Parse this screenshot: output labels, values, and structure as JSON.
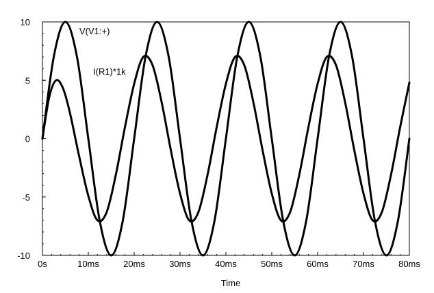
{
  "chart_data": {
    "type": "line",
    "title": "",
    "xlabel": "Time",
    "ylabel": "",
    "x_unit": "ms",
    "xlim": [
      0,
      80
    ],
    "ylim": [
      -10,
      10
    ],
    "x_ticks": [
      0,
      10,
      20,
      30,
      40,
      50,
      60,
      70,
      80
    ],
    "x_tick_labels": [
      "0s",
      "10ms",
      "20ms",
      "30ms",
      "40ms",
      "50ms",
      "60ms",
      "70ms",
      "80ms"
    ],
    "y_ticks": [
      10,
      5,
      0,
      -5,
      -10
    ],
    "y_tick_labels": [
      "10",
      "5",
      "0",
      "-5",
      "-10"
    ],
    "grid": false,
    "line_color": "#000000",
    "series": [
      {
        "name": "V(V1:+)",
        "x": [
          0,
          2.5,
          5,
          7.5,
          10,
          12.5,
          15,
          17.5,
          20,
          22.5,
          25,
          27.5,
          30,
          32.5,
          35,
          37.5,
          40,
          42.5,
          45,
          47.5,
          50,
          52.5,
          55,
          57.5,
          60,
          62.5,
          65,
          67.5,
          70,
          72.5,
          75,
          77.5,
          80
        ],
        "y": [
          0,
          7.07,
          10,
          7.07,
          0,
          -7.07,
          -10,
          -7.07,
          0,
          7.07,
          10,
          7.07,
          0,
          -7.07,
          -10,
          -7.07,
          0,
          7.07,
          10,
          7.07,
          0,
          -7.07,
          -10,
          -7.07,
          0,
          7.07,
          10,
          7.07,
          0,
          -7.07,
          -10,
          -7.07,
          0
        ]
      },
      {
        "name": "I(R1)*1k",
        "x": [
          0,
          1.5,
          3,
          4.5,
          6,
          8,
          10,
          12,
          14,
          16,
          18,
          20,
          22,
          24,
          26,
          28,
          30,
          32,
          34,
          36,
          38,
          40,
          42,
          44,
          46,
          48,
          50,
          52,
          54,
          56,
          58,
          60,
          62,
          64,
          66,
          68,
          70,
          72,
          74,
          76,
          78,
          80
        ],
        "y": [
          0,
          3.6,
          5.0,
          4.3,
          2.2,
          -1.5,
          -4.9,
          -7.0,
          -6.3,
          -3.1,
          1.0,
          4.7,
          7.0,
          6.3,
          3.1,
          -1.0,
          -4.7,
          -7.0,
          -6.3,
          -3.1,
          1.0,
          4.7,
          7.0,
          6.3,
          3.1,
          -1.0,
          -4.7,
          -7.0,
          -6.3,
          -3.1,
          1.0,
          4.7,
          7.0,
          6.3,
          3.1,
          -1.0,
          -4.7,
          -7.0,
          -6.3,
          -3.1,
          1.0,
          4.8
        ]
      }
    ]
  }
}
